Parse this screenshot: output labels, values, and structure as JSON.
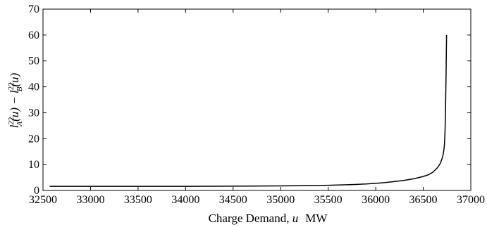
{
  "chart_data": {
    "type": "line",
    "title": "",
    "xlabel": {
      "main": "Charge Demand, ",
      "var": "u",
      "unit": "MW"
    },
    "ylabel": {
      "l1": "l",
      "sup1": "22",
      "sub1": "A",
      "arg1": "(u) − ",
      "l2": "l",
      "sup2": "22",
      "sub2": "B",
      "arg2": "(u)"
    },
    "xlim": [
      32500,
      37000
    ],
    "ylim": [
      0,
      70
    ],
    "xticks": [
      32500,
      33000,
      33500,
      34000,
      34500,
      35000,
      35500,
      36000,
      36500,
      37000
    ],
    "yticks": [
      0,
      10,
      20,
      30,
      40,
      50,
      60,
      70
    ],
    "grid": false,
    "series": [
      {
        "x": [
          32570,
          33000,
          33500,
          34000,
          34500,
          35000,
          35300,
          35500,
          35700,
          35900,
          36000,
          36100,
          36200,
          36300,
          36400,
          36500,
          36550,
          36600,
          36650,
          36680,
          36700,
          36710,
          36720,
          36725,
          36730,
          36735,
          36740,
          36745
        ],
        "y": [
          1.6,
          1.6,
          1.6,
          1.6,
          1.65,
          1.75,
          1.85,
          2.0,
          2.2,
          2.5,
          2.75,
          3.05,
          3.45,
          3.9,
          4.5,
          5.4,
          6.0,
          7.0,
          8.8,
          10.5,
          12.5,
          14.0,
          16.5,
          19.0,
          24.0,
          33.0,
          45.0,
          60.0
        ]
      }
    ]
  }
}
